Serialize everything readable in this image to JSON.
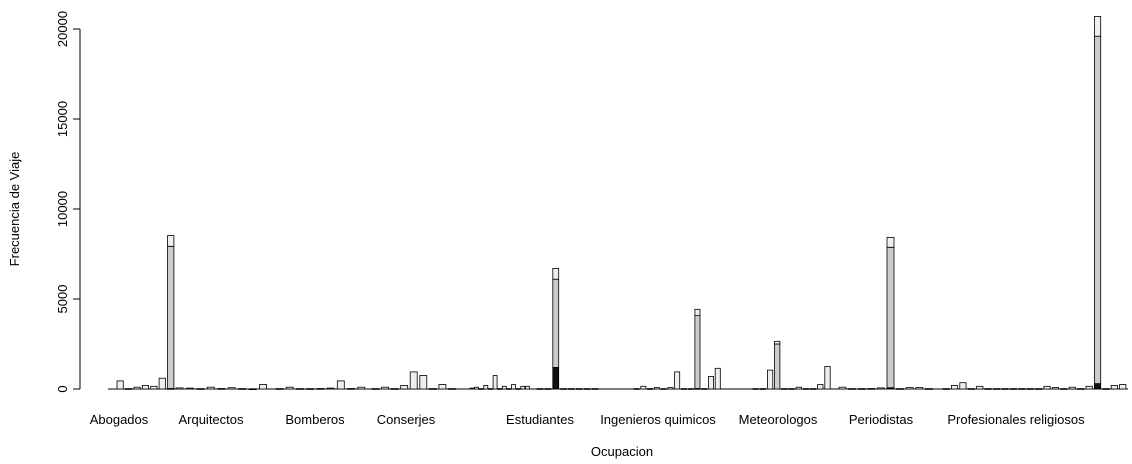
{
  "chart_data": {
    "type": "bar",
    "stacked": true,
    "xlabel": "Ocupacion",
    "ylabel": "Frecuencia de Viaje",
    "ylim": [
      0,
      20000
    ],
    "y_ticks": [
      0,
      5000,
      10000,
      15000,
      20000
    ],
    "grid": false,
    "colors": {
      "segment_base": "#111111",
      "segment_main": "#cccccc",
      "segment_top": "#eeeeee",
      "stroke": "#000000"
    },
    "groups": [
      {
        "label": "Abogados",
        "bars": [
          [
            0,
            0,
            450
          ],
          [
            0,
            0,
            20
          ],
          [
            0,
            0,
            100
          ],
          [
            0,
            0,
            200
          ],
          [
            0,
            0,
            150
          ],
          [
            0,
            0,
            600
          ],
          [
            30,
            7900,
            600
          ]
        ]
      },
      {
        "label": "Arquitectos",
        "bars": [
          [
            0,
            0,
            60
          ],
          [
            0,
            0,
            50
          ],
          [
            0,
            0,
            20
          ],
          [
            0,
            0,
            100
          ],
          [
            0,
            0,
            30
          ],
          [
            0,
            0,
            70
          ],
          [
            0,
            0,
            20
          ],
          [
            0,
            0,
            10
          ],
          [
            0,
            0,
            250
          ]
        ]
      },
      {
        "label": "Bomberos",
        "bars": [
          [
            0,
            0,
            20
          ],
          [
            0,
            0,
            100
          ],
          [
            0,
            0,
            20
          ],
          [
            0,
            0,
            20
          ],
          [
            0,
            0,
            30
          ],
          [
            0,
            0,
            50
          ],
          [
            0,
            0,
            450
          ],
          [
            0,
            0,
            30
          ],
          [
            0,
            0,
            100
          ]
        ]
      },
      {
        "label": "Conserjes",
        "bars": [
          [
            0,
            0,
            20
          ],
          [
            0,
            0,
            100
          ],
          [
            0,
            0,
            20
          ],
          [
            0,
            0,
            200
          ],
          [
            0,
            0,
            950
          ],
          [
            0,
            0,
            750
          ],
          [
            0,
            0,
            20
          ],
          [
            0,
            0,
            250
          ],
          [
            0,
            0,
            20
          ]
        ]
      },
      {
        "label": "",
        "bars": [
          [
            0,
            0,
            50
          ],
          [
            0,
            0,
            100
          ],
          [
            0,
            0,
            20
          ],
          [
            0,
            0,
            200
          ],
          [
            0,
            0,
            20
          ],
          [
            0,
            0,
            750
          ],
          [
            0,
            0,
            20
          ],
          [
            0,
            0,
            150
          ],
          [
            0,
            0,
            20
          ],
          [
            0,
            0,
            250
          ],
          [
            0,
            0,
            20
          ],
          [
            0,
            0,
            150
          ],
          [
            0,
            0,
            150
          ]
        ]
      },
      {
        "label": "Estudiantes",
        "bars": [
          [
            0,
            0,
            20
          ],
          [
            0,
            0,
            20
          ],
          [
            1200,
            4900,
            600
          ],
          [
            0,
            0,
            20
          ],
          [
            0,
            0,
            20
          ],
          [
            0,
            0,
            20
          ],
          [
            0,
            0,
            20
          ],
          [
            0,
            0,
            20
          ]
        ]
      },
      {
        "label": "Ingenieros quimicos",
        "bars": [
          [
            0,
            0,
            20
          ],
          [
            0,
            0,
            150
          ],
          [
            0,
            0,
            20
          ],
          [
            0,
            0,
            80
          ],
          [
            0,
            0,
            20
          ],
          [
            0,
            0,
            80
          ],
          [
            0,
            0,
            950
          ],
          [
            0,
            0,
            20
          ],
          [
            0,
            0,
            20
          ],
          [
            30,
            4050,
            350
          ],
          [
            0,
            0,
            20
          ],
          [
            0,
            0,
            700
          ],
          [
            0,
            0,
            1150
          ]
        ]
      },
      {
        "label": "Meteorologos",
        "bars": [
          [
            0,
            0,
            20
          ],
          [
            0,
            0,
            20
          ],
          [
            0,
            0,
            1050
          ],
          [
            0,
            2500,
            150
          ],
          [
            0,
            0,
            20
          ],
          [
            0,
            0,
            20
          ],
          [
            0,
            0,
            100
          ],
          [
            0,
            0,
            20
          ],
          [
            0,
            0,
            20
          ],
          [
            0,
            0,
            250
          ],
          [
            0,
            0,
            1250
          ]
        ]
      },
      {
        "label": "Periodistas",
        "bars": [
          [
            0,
            0,
            100
          ],
          [
            0,
            0,
            20
          ],
          [
            0,
            0,
            20
          ],
          [
            0,
            0,
            30
          ],
          [
            0,
            0,
            60
          ],
          [
            70,
            7800,
            550
          ],
          [
            0,
            0,
            20
          ],
          [
            0,
            0,
            80
          ],
          [
            0,
            0,
            80
          ],
          [
            0,
            0,
            20
          ]
        ]
      },
      {
        "label": "Profesionales religiosos",
        "bars": [
          [
            0,
            0,
            20
          ],
          [
            0,
            0,
            200
          ],
          [
            0,
            0,
            350
          ],
          [
            0,
            0,
            20
          ],
          [
            0,
            0,
            150
          ],
          [
            0,
            0,
            20
          ],
          [
            0,
            0,
            20
          ],
          [
            0,
            0,
            20
          ],
          [
            0,
            0,
            20
          ],
          [
            0,
            0,
            20
          ],
          [
            0,
            0,
            20
          ],
          [
            0,
            0,
            20
          ],
          [
            0,
            0,
            150
          ],
          [
            0,
            0,
            80
          ],
          [
            0,
            0,
            20
          ],
          [
            0,
            0,
            100
          ],
          [
            0,
            0,
            20
          ],
          [
            0,
            0,
            150
          ],
          [
            300,
            19300,
            1100
          ],
          [
            0,
            0,
            20
          ],
          [
            0,
            0,
            200
          ],
          [
            0,
            0,
            250
          ]
        ]
      }
    ]
  }
}
